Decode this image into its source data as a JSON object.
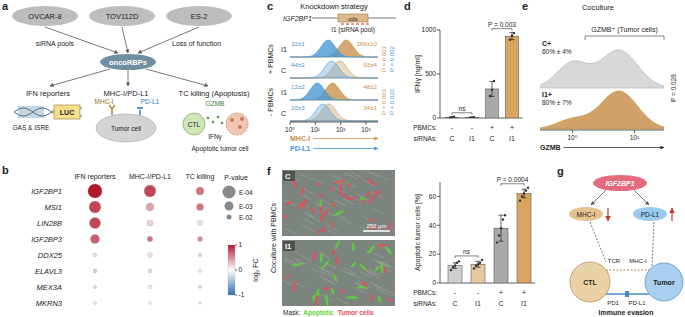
{
  "figure": {
    "panel_labels": [
      "a",
      "b",
      "c",
      "d",
      "e",
      "f",
      "g"
    ],
    "a": {
      "cell_lines": [
        "OVCAR-8",
        "TOV112D",
        "ES-2"
      ],
      "sirna": "siRNA pools",
      "loss": "Loss of function",
      "hub": "oncoRBPs",
      "ifn": {
        "title": "IFN reporters",
        "box": "LUC",
        "elements": "GAS & ISRE"
      },
      "mhc": {
        "title": "MHC-I/PD-L1",
        "cell": "Tumor cell",
        "mhc": "MHC-I",
        "pdl1": "PD-L1"
      },
      "kill": {
        "title": "TC killing (Apoptosis)",
        "gzmb": "GZMB",
        "ctl": "CTL",
        "ifng": "IFNγ",
        "target": "Apoptotic tumor cell"
      }
    },
    "f": {
      "images": [
        "C",
        "I1"
      ],
      "side_label": "Coculture with PBMCs",
      "scale_bar": "250 µm",
      "mask": "Mask:",
      "mask_items": [
        {
          "name": "Apoptotic",
          "color": "#5fd03c"
        },
        {
          "name": "Tumor cells",
          "color": "#e0505a"
        }
      ]
    },
    "g": {
      "driver": "IGF2BP1",
      "mhc": "MHC-I",
      "pdl1": "PD-L1",
      "ctl": "CTL",
      "tcr": "TCR",
      "mhc_ctl": "MHC-I",
      "pd1": "PD1",
      "pdl1_tumor": "PD-L1",
      "tumor": "Tumor",
      "caption": "Immune evasion"
    }
  },
  "chart_data": [
    {
      "type": "dot_matrix",
      "rows": [
        "IGF2BP1",
        "MSI1",
        "LIN28B",
        "IGF2BP3",
        "DDX25",
        "ELAVL3",
        "MEX3A",
        "MKRN3"
      ],
      "columns": [
        "IFN reporters",
        "MHC-I/PD-L1",
        "TC killing"
      ],
      "log2fc": [
        [
          1.0,
          0.8,
          0.6
        ],
        [
          0.8,
          0.4,
          0.6
        ],
        [
          0.8,
          0.2,
          0.15
        ],
        [
          0.7,
          0.6,
          0.5
        ],
        [
          -0.2,
          0.15,
          0.2
        ],
        [
          -0.3,
          0.2,
          0.1
        ],
        [
          0.2,
          0.1,
          -0.2
        ],
        [
          0.1,
          -0.1,
          0.1
        ]
      ],
      "p_values": [
        [
          5e-05,
          0.0002,
          0.002
        ],
        [
          0.0002,
          0.002,
          0.003
        ],
        [
          0.0003,
          0.005,
          0.01
        ],
        [
          0.001,
          0.008,
          0.01
        ],
        [
          0.02,
          0.01,
          0.02
        ],
        [
          0.02,
          0.02,
          0.03
        ],
        [
          0.03,
          0.02,
          0.03
        ],
        [
          0.03,
          0.03,
          0.04
        ]
      ],
      "size_legend": {
        "title": "P-value",
        "values": [
          0.0001,
          0.001,
          0.01
        ],
        "labels": [
          "E-04",
          "E-03",
          "E-02"
        ]
      },
      "color_bar": {
        "title": "log₂ FC",
        "range": [
          -1,
          1
        ],
        "ticks": [
          -1,
          0,
          1
        ]
      }
    },
    {
      "type": "histogram_grid",
      "title": "Knockdown strategy",
      "gene": "IGF2BP1",
      "region": "cds",
      "sirna": "I1 (siRNA pool)",
      "log": "x",
      "xlim": [
        1,
        3000
      ],
      "xticks": [
        {
          "value": 1,
          "label": "10⁰"
        },
        {
          "value": 10,
          "label": "10¹"
        },
        {
          "value": 100,
          "label": "10²"
        },
        {
          "value": 1000,
          "label": "10³"
        }
      ],
      "series": [
        {
          "name": "MHC-I",
          "color": "#c8924f"
        },
        {
          "name": "PD-L1",
          "color": "#4a98d6"
        }
      ],
      "groups": [
        {
          "name": "+ PBMCs",
          "p_labels": [
            "P = 0.001",
            "P = 0.002"
          ],
          "rows": [
            {
              "name": "I1",
              "values": [
                166,
                32
              ],
              "value_labels": [
                "166±10",
                "32±1"
              ]
            },
            {
              "name": "C",
              "values": [
                93,
                44
              ],
              "value_labels": [
                "93±4",
                "44±2"
              ]
            }
          ]
        },
        {
          "name": "- PBMCs",
          "p_labels": [
            "P = 0.003",
            "P = 0.020"
          ],
          "rows": [
            {
              "name": "I1",
              "values": [
                48,
                12
              ],
              "value_labels": [
                "48±2",
                "12±2"
              ]
            },
            {
              "name": "C",
              "values": [
                34,
                20
              ],
              "value_labels": [
                "34±1",
                "20±3"
              ]
            }
          ]
        }
      ]
    },
    {
      "type": "bar",
      "ylabel": "IFNγ [ng/ml]",
      "ylim": [
        0,
        1000
      ],
      "yticks": [
        0,
        500,
        1000
      ],
      "x_rows": [
        {
          "name": "PBMCs:",
          "labels": [
            "-",
            "-",
            "+",
            "+"
          ]
        },
        {
          "name": "siRNAs:",
          "labels": [
            "C",
            "I1",
            "C",
            "I1"
          ]
        }
      ],
      "values": [
        8,
        6,
        330,
        930
      ],
      "errors": [
        5,
        3,
        85,
        40
      ],
      "points": [
        [
          2,
          8,
          14
        ],
        [
          3,
          6,
          9
        ],
        [
          250,
          320,
          420
        ],
        [
          890,
          935,
          965
        ]
      ],
      "colors": [
        "#cfcfcf",
        "#e7c89c",
        "#a9a9a9",
        "#d9a460"
      ],
      "comparisons": [
        {
          "label": "ns",
          "bars": [
            0,
            1
          ]
        },
        {
          "label": "P = 0.003",
          "bars": [
            2,
            3
          ]
        }
      ]
    },
    {
      "type": "histogram_overlay",
      "title": "Coculture",
      "bracket": "GZMB⁺ (Tumor cells)",
      "log": "x",
      "xlim": [
        0.3,
        30
      ],
      "xticks": [
        {
          "value": 1,
          "label": "10⁰"
        },
        {
          "value": 10,
          "label": "10¹"
        }
      ],
      "xlabel": "GZMB",
      "series": [
        {
          "name": "C+",
          "value": 60,
          "value_label": "60% ± 4%",
          "color": "#b8b8b8"
        },
        {
          "name": "I1+",
          "value": 80,
          "value_label": "80% ± 7%",
          "color": "#c8924f"
        }
      ],
      "p_label": "P = 0.028"
    },
    {
      "type": "bar",
      "ylabel": "Apoptotic tumor cells [%]",
      "ylim": [
        0,
        70
      ],
      "yticks": [
        0,
        20,
        40,
        60
      ],
      "x_rows": [
        {
          "name": "PBMCs:",
          "labels": [
            "-",
            "-",
            "+",
            "+"
          ]
        },
        {
          "name": "siRNAs:",
          "labels": [
            "C",
            "I1",
            "C",
            "I1"
          ]
        }
      ],
      "values": [
        12,
        13,
        38,
        62
      ],
      "errors": [
        2,
        2,
        9,
        3
      ],
      "points": [
        [
          9,
          11,
          12,
          14,
          15
        ],
        [
          10,
          12,
          13,
          14,
          16
        ],
        [
          28,
          33,
          38,
          44,
          47
        ],
        [
          57,
          60,
          62,
          64,
          66
        ]
      ],
      "colors": [
        "#cfcfcf",
        "#e7c89c",
        "#a9a9a9",
        "#d9a460"
      ],
      "comparisons": [
        {
          "label": "ns",
          "bars": [
            0,
            1
          ]
        },
        {
          "label": "P = 0.0004",
          "bars": [
            2,
            3
          ]
        }
      ]
    }
  ]
}
